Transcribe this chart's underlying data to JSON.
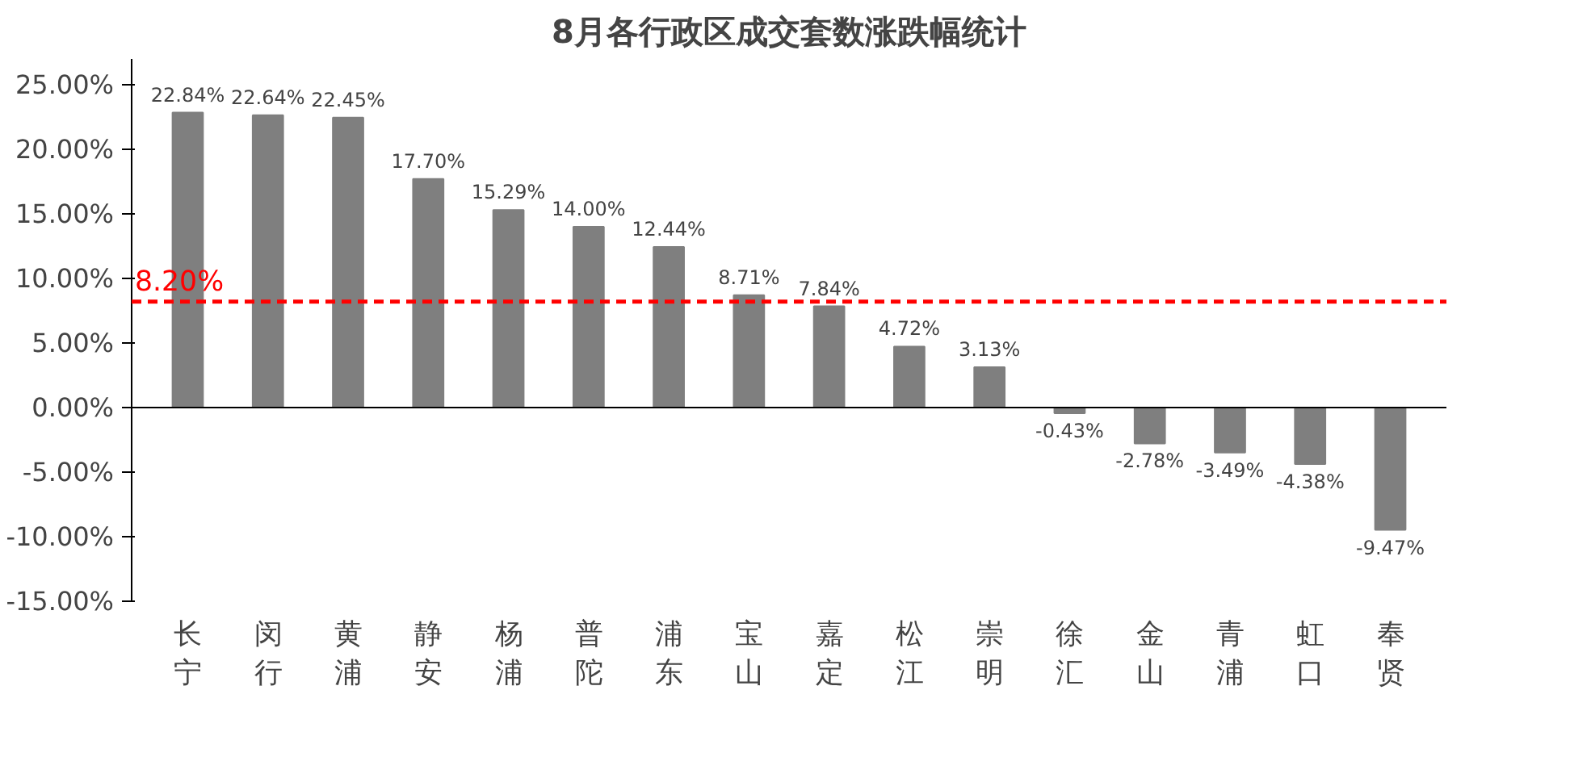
{
  "chart_data": {
    "type": "bar",
    "title": "8月各行政区成交套数涨跌幅统计",
    "categories": [
      "长宁",
      "闵行",
      "黄浦",
      "静安",
      "杨浦",
      "普陀",
      "浦东",
      "宝山",
      "嘉定",
      "松江",
      "崇明",
      "徐汇",
      "金山",
      "青浦",
      "虹口",
      "奉贤"
    ],
    "values": [
      22.84,
      22.64,
      22.45,
      17.7,
      15.29,
      14.0,
      12.44,
      8.71,
      7.84,
      4.72,
      3.13,
      -0.43,
      -2.78,
      -3.49,
      -4.38,
      -9.47
    ],
    "value_labels": [
      "22.84%",
      "22.64%",
      "22.45%",
      "17.70%",
      "15.29%",
      "14.00%",
      "12.44%",
      "8.71%",
      "7.84%",
      "4.72%",
      "3.13%",
      "-0.43%",
      "-2.78%",
      "-3.49%",
      "-4.38%",
      "-9.47%"
    ],
    "color": "#7f7f7f",
    "ylim": [
      -15,
      27
    ],
    "yticks": [
      {
        "value": -15,
        "label": "-15.00%"
      },
      {
        "value": -10,
        "label": "-10.00%"
      },
      {
        "value": -5,
        "label": "-5.00%"
      },
      {
        "value": 0,
        "label": "0.00%"
      },
      {
        "value": 5,
        "label": "5.00%"
      },
      {
        "value": 10,
        "label": "10.00%"
      },
      {
        "value": 15,
        "label": "15.00%"
      },
      {
        "value": 20,
        "label": "20.00%"
      },
      {
        "value": 25,
        "label": "25.00%"
      }
    ],
    "ref_lines": [
      {
        "axis": "y",
        "value": 8.2,
        "label": "8.20%",
        "color": "#ff0000",
        "line_style": "dashed"
      }
    ]
  }
}
